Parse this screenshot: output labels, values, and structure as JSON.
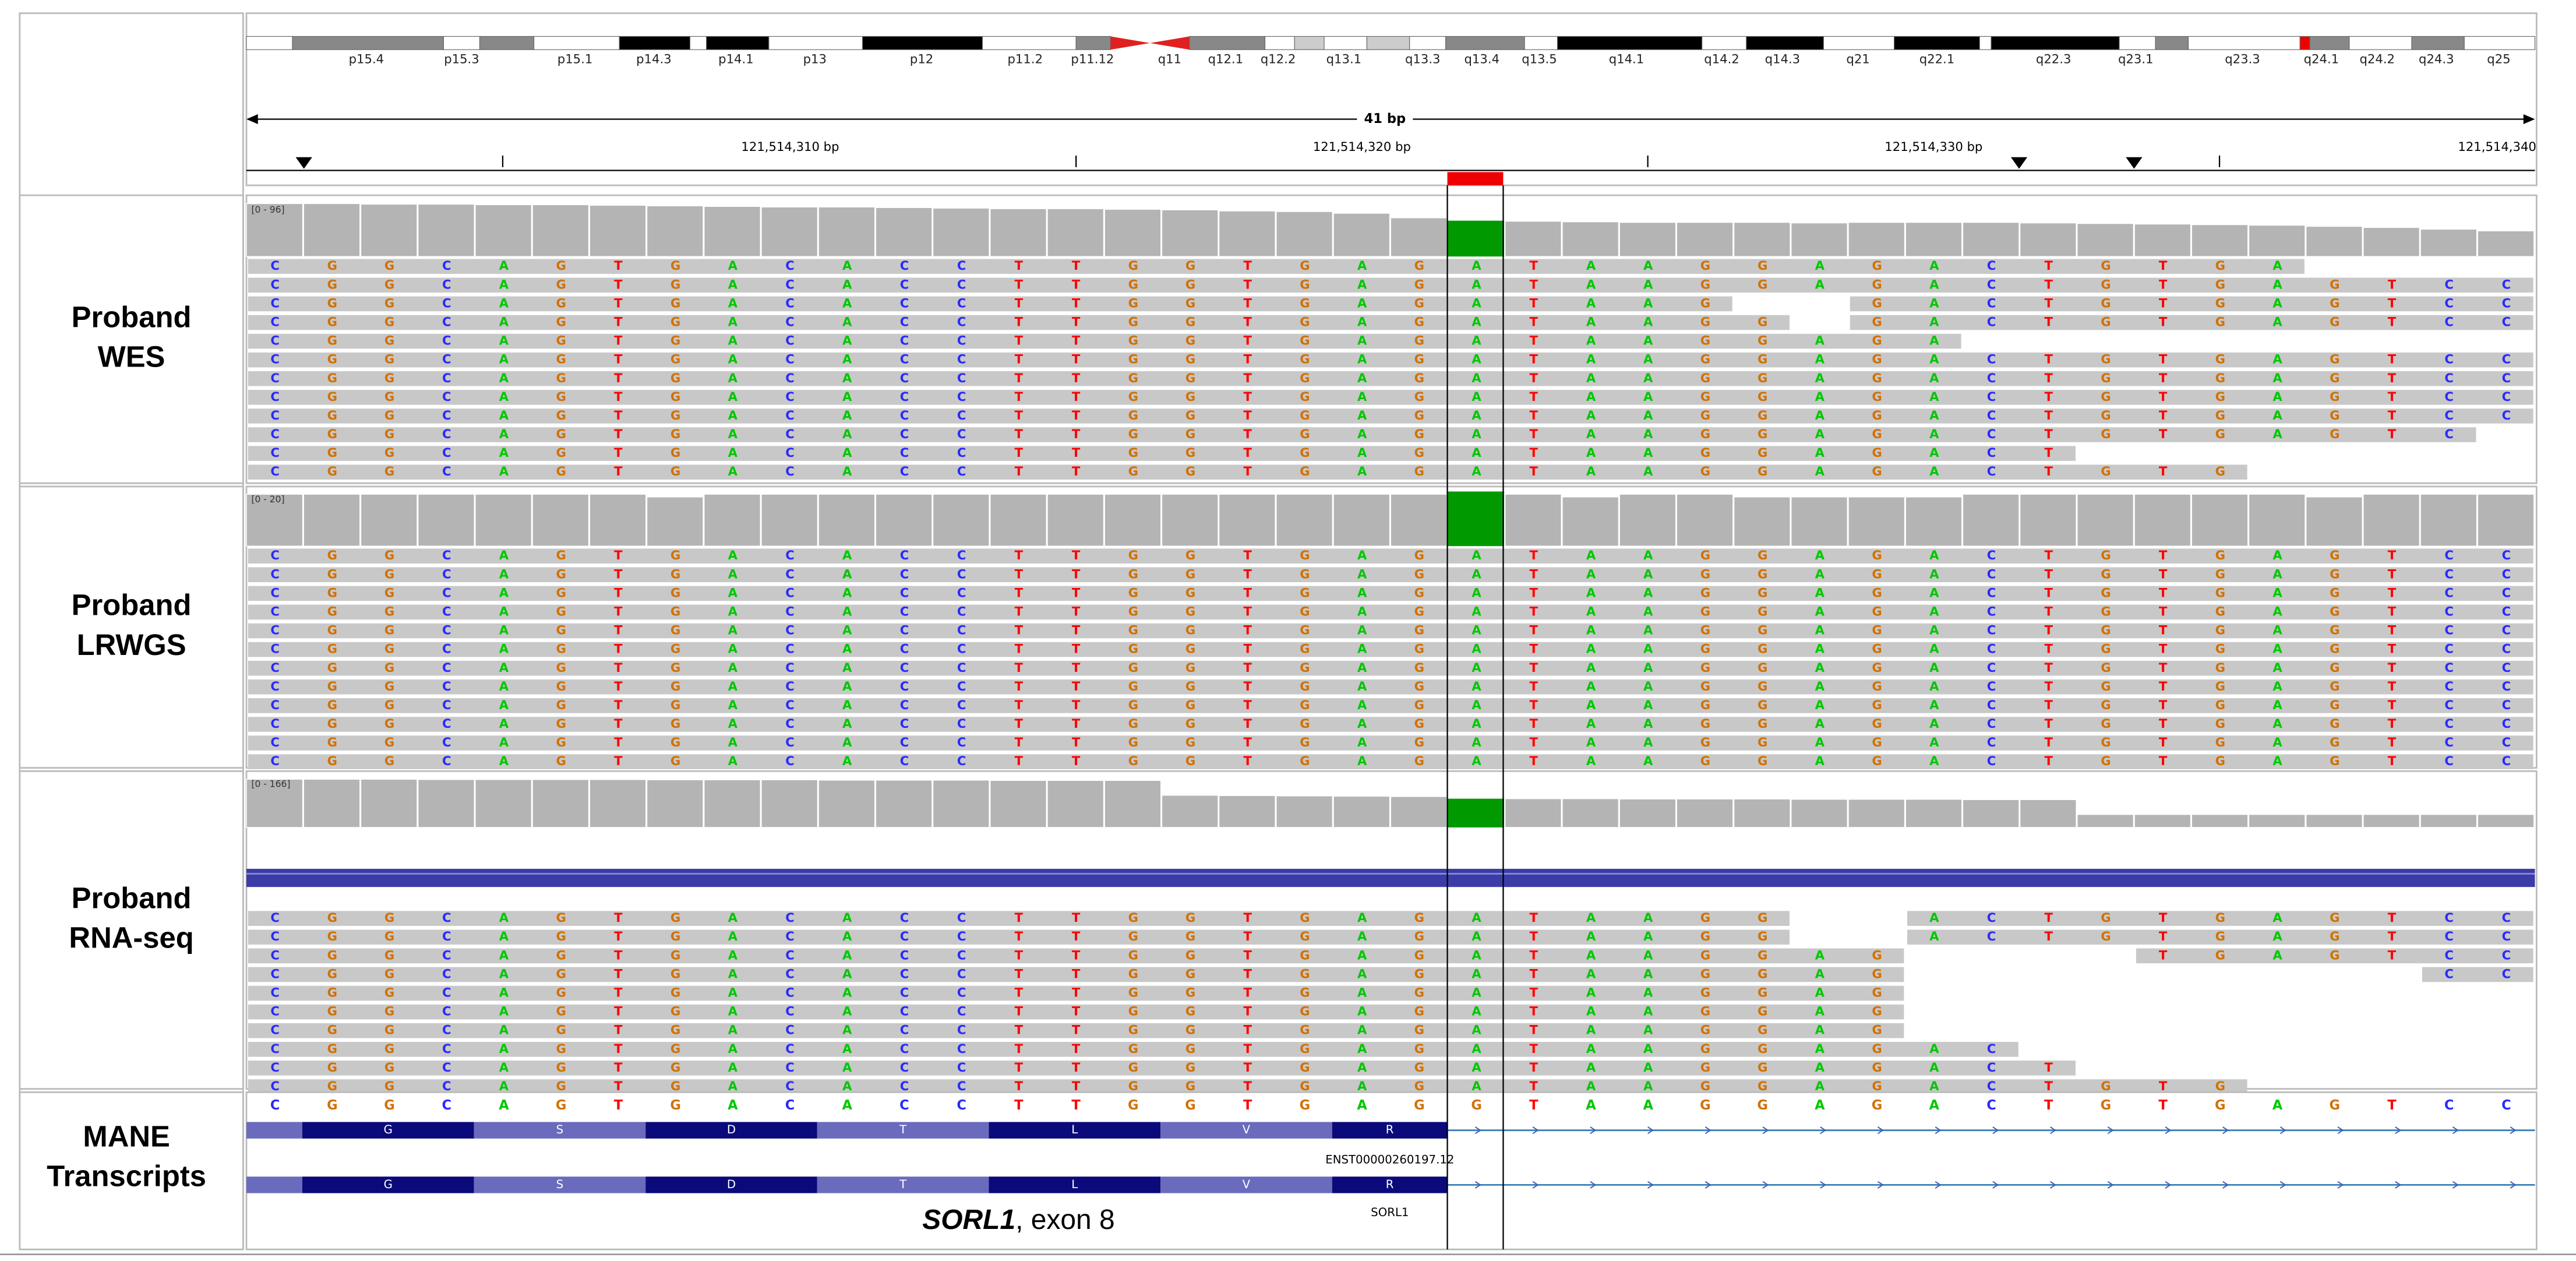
{
  "ideogram": {
    "bands": [
      "p15.4",
      "p15.3",
      "p15.1",
      "p14.3",
      "p14.1",
      "p13",
      "p12",
      "p11.2",
      "p11.12",
      "q11",
      "q12.1",
      "q12.2",
      "q13.1",
      "q13.3",
      "q13.4",
      "q13.5",
      "q14.1",
      "q14.2",
      "q14.3",
      "q21",
      "q22.1",
      "q22.3",
      "q23.1",
      "q23.3",
      "q24.1",
      "q24.2",
      "q24.3",
      "q25"
    ]
  },
  "ruler": {
    "span": "41 bp",
    "labels": [
      "121,514,310 bp",
      "121,514,320 bp",
      "121,514,330 bp",
      "121,514,340"
    ]
  },
  "base_colors": {
    "A": "#00c800",
    "C": "#2a2aff",
    "G": "#d17105",
    "T": "#ff0000"
  },
  "tracks": [
    {
      "label_lines": [
        "Proband",
        "WES"
      ],
      "range_label": "[0 - 96]",
      "ylim": [
        0,
        96
      ],
      "coverage": [
        93,
        93,
        92,
        92,
        91,
        91,
        90,
        89,
        88,
        87,
        87,
        86,
        85,
        84,
        84,
        83,
        82,
        80,
        79,
        76,
        68,
        63,
        62,
        61,
        60,
        60,
        60,
        59,
        60,
        60,
        60,
        59,
        58,
        57,
        56,
        55,
        53,
        51,
        48,
        45
      ],
      "reads": [
        "CGGCAGTGACACCTTGGTGAGATAAGGAGACTGTGA",
        "CGGCAGTGACACCTTGGTGAGATAAGGAGACTGTGAGTCC",
        "CGGCAGTGACACCTTGGTGAGATAAG  GACTGTGAGTCC",
        "CGGCAGTGACACCTTGGTGAGATAAGG GACTGTGAGTCC",
        "CGGCAGTGACACCTTGGTGAGATAAGGAGA",
        "CGGCAGTGACACCTTGGTGAGATAAGGAGACTGTGAGTCC",
        "CGGCAGTGACACCTTGGTGAGATAAGGAGACTGTGAGTCC",
        "CGGCAGTGACACCTTGGTGAGATAAGGAGACTGTGAGTCC",
        "CGGCAGTGACACCTTGGTGAGATAAGGAGACTGTGAGTCC",
        "CGGCAGTGACACCTTGGTGAGATAAGGAGACTGTGAGTC",
        "CGGCAGTGACACCTTGGTGAGATAAGGAGACT",
        "CGGCAGTGACACCTTGGTGAGATAAGGAGACTGTG"
      ]
    },
    {
      "label_lines": [
        "Proband",
        "LRWGS"
      ],
      "range_label": "[0 - 20]",
      "ylim": [
        0,
        20
      ],
      "coverage": [
        19,
        19,
        19,
        19,
        19,
        19,
        19,
        18,
        19,
        19,
        19,
        19,
        19,
        19,
        19,
        19,
        19,
        19,
        19,
        19,
        19,
        20,
        19,
        18,
        19,
        19,
        18,
        18,
        18,
        18,
        19,
        19,
        19,
        19,
        19,
        19,
        18,
        19,
        19,
        19
      ],
      "reads": [
        "CGGCAGTGACACCTTGGTGAGATAAGGAGACTGTGAGTCC",
        "CGGCAGTGACACCTTGGTGAGATAAGGAGACTGTGAGTCC",
        "CGGCAGTGACACCTTGGTGAGATAAGGAGACTGTGAGTCC",
        "CGGCAGTGACACCTTGGTGAGATAAGGAGACTGTGAGTCC",
        "CGGCAGTGACACCTTGGTGAGATAAGGAGACTGTGAGTCC",
        "CGGCAGTGACACCTTGGTGAGATAAGGAGACTGTGAGTCC",
        "CGGCAGTGACACCTTGGTGAGATAAGGAGACTGTGAGTCC",
        "CGGCAGTGACACCTTGGTGAGATAAGGAGACTGTGAGTCC",
        "CGGCAGTGACACCTTGGTGAGATAAGGAGACTGTGAGTCC",
        "CGGCAGTGACACCTTGGTGAGATAAGGAGACTGTGAGTCC",
        "CGGCAGTGACACCTTGGTGAGATAAGGAGACTGTGAGTCC",
        "CGGCAGTGACACCTTGGTGAGATAAGGAGACTGTGAGTCC"
      ]
    },
    {
      "label_lines": [
        "Proband",
        "RNA-seq"
      ],
      "range_label": "[0 - 166]",
      "ylim": [
        0,
        166
      ],
      "coverage": [
        156,
        156,
        156,
        155,
        155,
        155,
        155,
        154,
        154,
        154,
        153,
        153,
        153,
        152,
        152,
        152,
        104,
        103,
        102,
        101,
        100,
        93,
        93,
        93,
        92,
        92,
        92,
        91,
        91,
        91,
        90,
        90,
        42,
        42,
        42,
        42,
        42,
        42,
        42,
        42
      ],
      "reads": [
        "CGGCAGTGACACCTTGGTGAGATAAGG  ACTGTGAGTCC",
        "CGGCAGTGACACCTTGGTGAGATAAGG  ACTGTGAGTCC",
        "CGGCAGTGACACCTTGGTGAGATAAGGAG    TGAGTCC",
        "CGGCAGTGACACCTTGGTGAGATAAGGAG         CC",
        "CGGCAGTGACACCTTGGTGAGATAAGGAG",
        "CGGCAGTGACACCTTGGTGAGATAAGGAG",
        "CGGCAGTGACACCTTGGTGAGATAAGGAG",
        "CGGCAGTGACACCTTGGTGAGATAAGGAGAC",
        "CGGCAGTGACACCTTGGTGAGATAAGGAGACT",
        "CGGCAGTGACACCTTGGTGAGATAAGGAGACTGTG"
      ]
    }
  ],
  "mane": {
    "label_lines": [
      "MANE",
      "Transcripts"
    ],
    "reference": "CGGCAGTGACACCTTGGTGAGGTAAGGAGACTGTGAGTCC",
    "amino_acids": [
      "G",
      "S",
      "D",
      "T",
      "L",
      "V",
      "R"
    ],
    "transcript_id": "ENST00000260197.12",
    "gene": "SORL1",
    "caption": [
      "SORL1",
      ", exon 8"
    ]
  }
}
